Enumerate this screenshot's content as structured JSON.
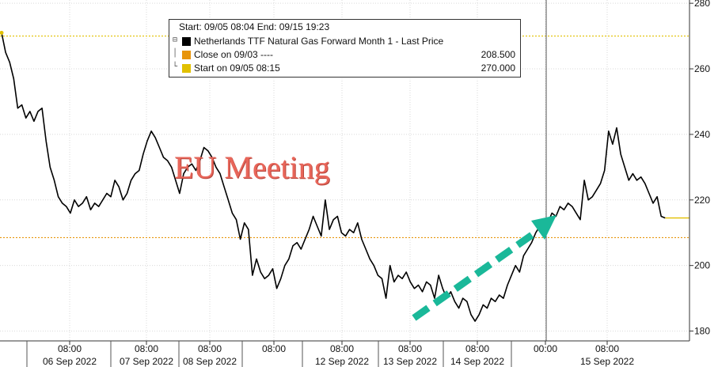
{
  "chart_data": {
    "type": "line",
    "legend": {
      "header": "Start: 09/05 08:04 End: 09/15 19:23",
      "items": [
        {
          "label": "Netherlands TTF Natural Gas Forward Month 1 - Last Price",
          "value": "",
          "color": "#000000"
        },
        {
          "label": "Close on 09/03 ----",
          "value": "208.500",
          "color": "#e8950c"
        },
        {
          "label": "Start on 09/05 08:15",
          "value": "270.000",
          "color": "#e1c000"
        }
      ]
    },
    "annotation": "EU Meeting",
    "ylim": [
      177,
      281
    ],
    "y_ticks": [
      180,
      200,
      220,
      240,
      260,
      280
    ],
    "x_ticks": [
      {
        "time": "08:00",
        "date": "06 Sep 2022"
      },
      {
        "time": "08:00",
        "date": "07 Sep 2022"
      },
      {
        "time": "08:00",
        "date": "08 Sep 2022"
      },
      {
        "time": "08:00",
        "date": ""
      },
      {
        "time": "08:00",
        "date": "12 Sep 2022"
      },
      {
        "time": "08:00",
        "date": "13 Sep 2022"
      },
      {
        "time": "08:00",
        "date": "14 Sep 2022"
      },
      {
        "time": "00:00",
        "date": ""
      },
      {
        "time": "08:00",
        "date": "15 Sep 2022"
      }
    ],
    "reference_lines": [
      {
        "name": "Close on 09/03",
        "value": 208.5,
        "color": "#e8950c"
      },
      {
        "name": "Start on 09/05 08:15",
        "value": 270.0,
        "color": "#e1c000"
      }
    ],
    "series": [
      {
        "name": "Netherlands TTF Natural Gas Forward Month 1 - Last Price",
        "color": "#000000",
        "x_index": [
          0,
          1,
          2,
          3,
          4,
          5,
          6,
          7,
          8,
          9,
          10,
          11,
          12,
          13,
          14,
          15,
          16,
          17,
          18,
          19,
          20,
          21,
          22,
          23,
          24,
          25,
          26,
          27,
          28,
          29,
          30,
          31,
          32,
          33,
          34,
          35,
          36,
          37,
          38,
          39,
          40,
          41,
          42,
          43,
          44,
          45,
          46,
          47,
          48,
          49,
          50,
          51,
          52,
          53,
          54,
          55,
          56,
          57,
          58,
          59,
          60,
          61,
          62,
          63,
          64,
          65,
          66,
          67,
          68,
          69,
          70,
          71,
          72,
          73,
          74,
          75,
          76,
          77,
          78,
          79,
          80,
          81,
          82,
          83,
          84,
          85,
          86,
          87,
          88,
          89,
          90,
          91,
          92,
          93,
          94,
          95,
          96,
          97,
          98,
          99,
          100,
          101,
          102,
          103,
          104,
          105,
          106,
          107,
          108,
          109,
          110,
          111,
          112,
          113,
          114,
          115,
          116,
          117,
          118,
          119,
          120,
          121,
          122,
          123,
          124,
          125,
          126,
          127,
          128,
          129,
          130,
          131,
          132,
          133,
          134,
          135,
          136,
          137,
          138,
          139,
          140,
          141,
          142,
          143,
          144,
          145,
          146,
          147,
          148,
          149,
          150,
          151,
          152,
          153,
          154,
          155,
          156,
          157,
          158,
          159,
          160,
          161,
          162,
          163,
          164,
          165,
          166,
          167,
          168,
          169,
          170
        ],
        "values": [
          271,
          265,
          262,
          257,
          248,
          249,
          245,
          247,
          244,
          247,
          248,
          238,
          230,
          226,
          221,
          219,
          218,
          216,
          220,
          218,
          219,
          221,
          217,
          219,
          218,
          220,
          222,
          221,
          226,
          224,
          220,
          222,
          226,
          228,
          229,
          234,
          238,
          241,
          239,
          236,
          233,
          232,
          230,
          226,
          222,
          228,
          230,
          231,
          229,
          232,
          236,
          235,
          233,
          230,
          228,
          224,
          220,
          216,
          214,
          208,
          213,
          211,
          197,
          202,
          198,
          196,
          197,
          199,
          193,
          196,
          200,
          202,
          206,
          207,
          205,
          208,
          211,
          215,
          212,
          209,
          220,
          211,
          214,
          215,
          210,
          209,
          211,
          210,
          213,
          208,
          205,
          202,
          200,
          197,
          196,
          190,
          200,
          195,
          197,
          196,
          198,
          195,
          193,
          194,
          192,
          195,
          194,
          190,
          197,
          193,
          190,
          192,
          189,
          187,
          190,
          189,
          185,
          183,
          185,
          188,
          187,
          190,
          189,
          191,
          190,
          194,
          197,
          200,
          198,
          203,
          205,
          207,
          210,
          212,
          214,
          213,
          216,
          215,
          218,
          217,
          219,
          218,
          216,
          214,
          226,
          220,
          221,
          223,
          225,
          229,
          241,
          237,
          242,
          234,
          230,
          226,
          228,
          226,
          227,
          225,
          222,
          219,
          221,
          215,
          214.5,
          214.5,
          214.5,
          214.5,
          214.5,
          214.5,
          214.5
        ]
      }
    ]
  }
}
